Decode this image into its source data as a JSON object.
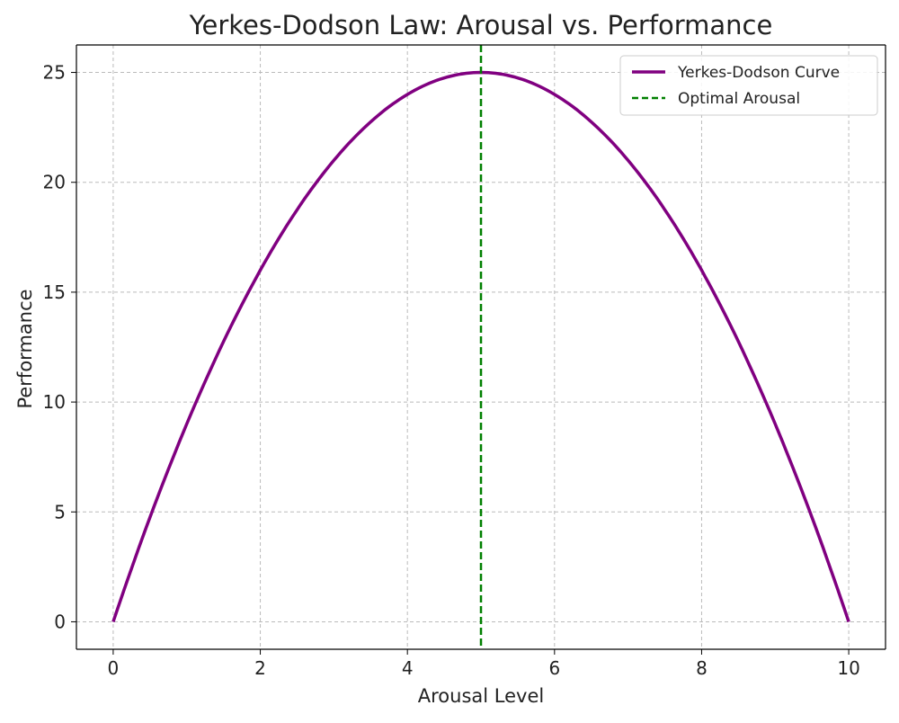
{
  "chart_data": {
    "type": "line",
    "title": "Yerkes-Dodson Law: Arousal vs. Performance",
    "xlabel": "Arousal Level",
    "ylabel": "Performance",
    "xlim": [
      -0.5,
      10.5
    ],
    "ylim": [
      -1.25,
      26.25
    ],
    "xticks": [
      0,
      2,
      4,
      6,
      8,
      10
    ],
    "yticks": [
      0,
      5,
      10,
      15,
      20,
      25
    ],
    "grid": true,
    "legend_position": "top-right",
    "series": [
      {
        "name": "Yerkes-Dodson Curve",
        "formula": "y = x*(10-x)",
        "x_range": [
          0,
          10
        ],
        "color": "#800080",
        "style": "solid"
      },
      {
        "name": "Optimal Arousal",
        "type": "vline",
        "x": 5,
        "color": "#008000",
        "style": "dashed"
      }
    ]
  }
}
